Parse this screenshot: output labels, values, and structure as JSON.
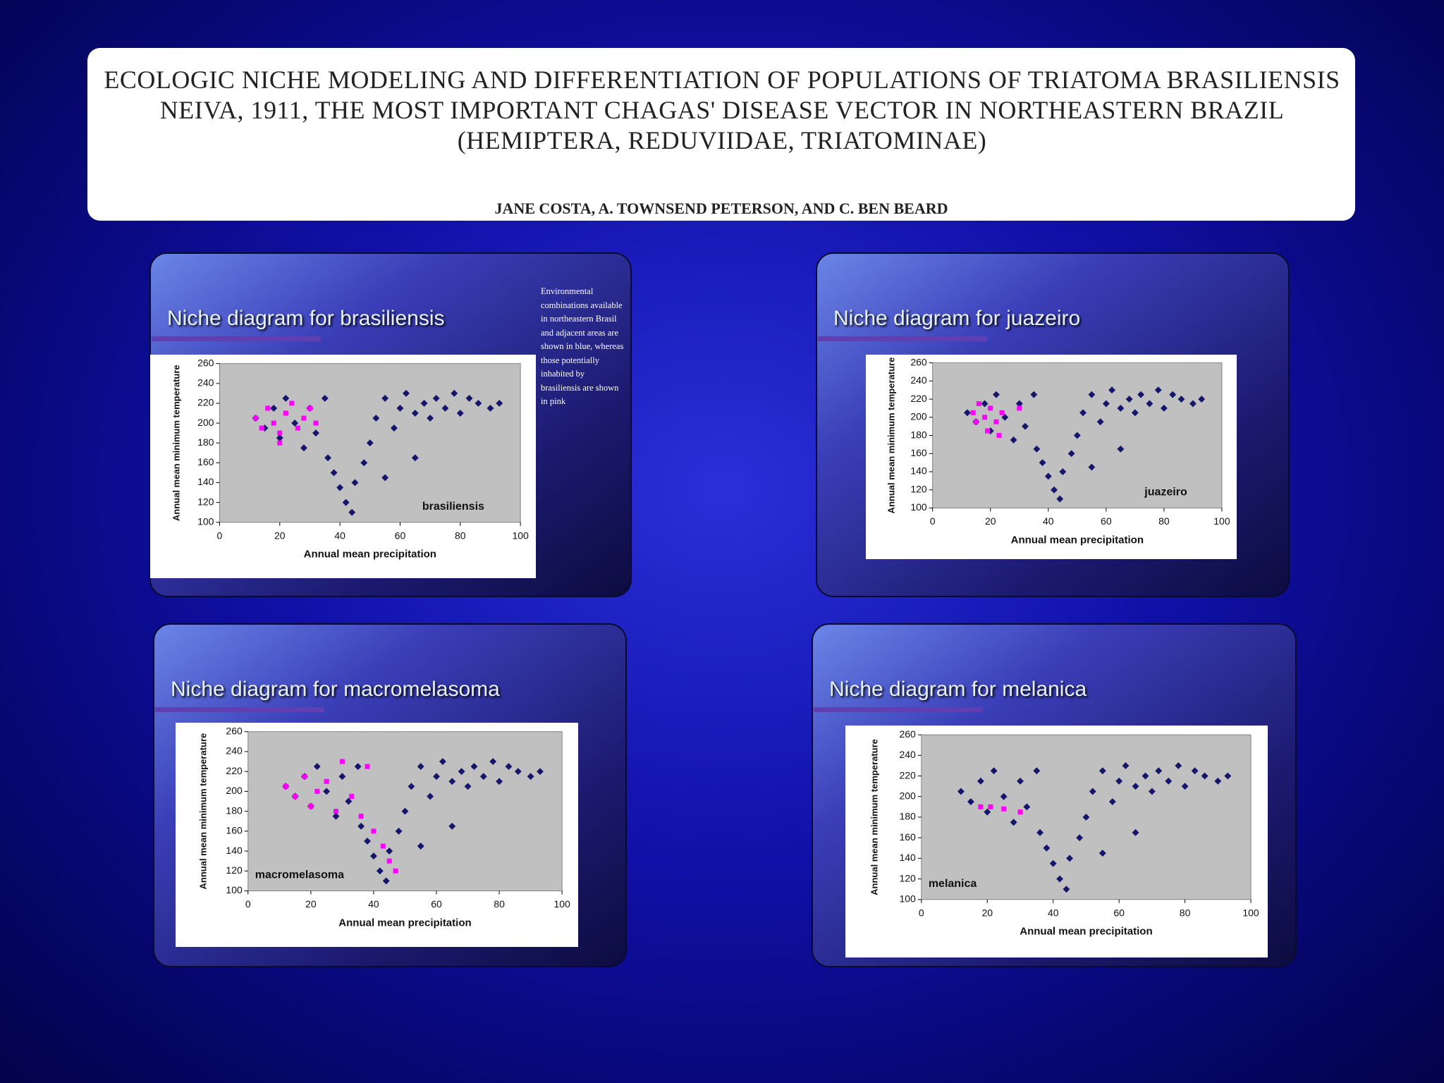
{
  "header": {
    "title": "ECOLOGIC NICHE MODELING AND DIFFERENTIATION OF POPULATIONS OF TRIATOMA BRASILIENSIS NEIVA, 1911, THE MOST IMPORTANT CHAGAS' DISEASE VECTOR IN NORTHEASTERN BRAZIL (HEMIPTERA, REDUVIIDAE, TRIATOMINAE)",
    "authors": "JANE COSTA, A. TOWNSEND PETERSON, AND C. BEN BEARD"
  },
  "side_note": "Environmental combinations available in northeastern Brasil and adjacent areas are shown in blue, whereas those potentially inhabited by brasiliensis are shown in pink",
  "chart_data": [
    {
      "type": "scatter",
      "title": "Niche diagram for brasiliensis",
      "x_label": "Annual mean precipitation",
      "y_label": "Annual mean minimum temperature",
      "annotation": "brasiliensis",
      "label_corner": "bottom-right",
      "xlim": [
        0,
        100
      ],
      "xticks": [
        0,
        20,
        40,
        60,
        80,
        100
      ],
      "ylim": [
        100,
        260
      ],
      "yticks": [
        100,
        120,
        140,
        160,
        180,
        200,
        220,
        240,
        260
      ],
      "series": [
        {
          "color": "#15156b",
          "x": [
            12,
            15,
            18,
            20,
            22,
            25,
            28,
            30,
            32,
            35,
            36,
            38,
            40,
            42,
            44,
            45,
            48,
            50,
            52,
            55,
            58,
            60,
            62,
            65,
            68,
            70,
            72,
            75,
            78,
            80,
            83,
            86,
            90,
            93,
            65,
            55
          ],
          "values": [
            205,
            195,
            215,
            185,
            225,
            200,
            175,
            215,
            190,
            225,
            165,
            150,
            135,
            120,
            110,
            140,
            160,
            180,
            205,
            225,
            195,
            215,
            230,
            210,
            220,
            205,
            225,
            215,
            230,
            210,
            225,
            220,
            215,
            220,
            165,
            145
          ]
        },
        {
          "color": "#ff00ff",
          "x": [
            12,
            14,
            16,
            18,
            20,
            22,
            24,
            26,
            28,
            30,
            32,
            20
          ],
          "values": [
            205,
            195,
            215,
            200,
            190,
            210,
            220,
            195,
            205,
            215,
            200,
            180
          ]
        }
      ]
    },
    {
      "type": "scatter",
      "title": "Niche diagram for juazeiro",
      "x_label": "Annual mean precipitation",
      "y_label": "Annual mean minimum temperature",
      "annotation": "juazeiro",
      "label_corner": "bottom-right",
      "xlim": [
        0,
        100
      ],
      "xticks": [
        0,
        20,
        40,
        60,
        80,
        100
      ],
      "ylim": [
        100,
        260
      ],
      "yticks": [
        100,
        120,
        140,
        160,
        180,
        200,
        220,
        240,
        260
      ],
      "series": [
        {
          "color": "#15156b",
          "x": [
            12,
            15,
            18,
            20,
            22,
            25,
            28,
            30,
            32,
            35,
            36,
            38,
            40,
            42,
            44,
            45,
            48,
            50,
            52,
            55,
            58,
            60,
            62,
            65,
            68,
            70,
            72,
            75,
            78,
            80,
            83,
            86,
            90,
            93,
            65,
            55
          ],
          "values": [
            205,
            195,
            215,
            185,
            225,
            200,
            175,
            215,
            190,
            225,
            165,
            150,
            135,
            120,
            110,
            140,
            160,
            180,
            205,
            225,
            195,
            215,
            230,
            210,
            220,
            205,
            225,
            215,
            230,
            210,
            225,
            220,
            215,
            220,
            165,
            145
          ]
        },
        {
          "color": "#ff00ff",
          "x": [
            14,
            15,
            16,
            18,
            19,
            20,
            22,
            23,
            24,
            30
          ],
          "values": [
            205,
            195,
            215,
            200,
            185,
            210,
            195,
            180,
            205,
            210
          ]
        }
      ]
    },
    {
      "type": "scatter",
      "title": "Niche diagram for macromelasoma",
      "x_label": "Annual mean precipitation",
      "y_label": "Annual mean minimum temperature",
      "annotation": "macromelasoma",
      "label_corner": "bottom-left",
      "xlim": [
        0,
        100
      ],
      "xticks": [
        0,
        20,
        40,
        60,
        80,
        100
      ],
      "ylim": [
        100,
        260
      ],
      "yticks": [
        100,
        120,
        140,
        160,
        180,
        200,
        220,
        240,
        260
      ],
      "series": [
        {
          "color": "#15156b",
          "x": [
            12,
            15,
            18,
            20,
            22,
            25,
            28,
            30,
            32,
            35,
            36,
            38,
            40,
            42,
            44,
            45,
            48,
            50,
            52,
            55,
            58,
            60,
            62,
            65,
            68,
            70,
            72,
            75,
            78,
            80,
            83,
            86,
            90,
            93,
            65,
            55
          ],
          "values": [
            205,
            195,
            215,
            185,
            225,
            200,
            175,
            215,
            190,
            225,
            165,
            150,
            135,
            120,
            110,
            140,
            160,
            180,
            205,
            225,
            195,
            215,
            230,
            210,
            220,
            205,
            225,
            215,
            230,
            210,
            225,
            220,
            215,
            220,
            165,
            145
          ]
        },
        {
          "color": "#ff00ff",
          "x": [
            12,
            15,
            18,
            20,
            22,
            25,
            28,
            30,
            33,
            36,
            40,
            43,
            45,
            47,
            38
          ],
          "values": [
            205,
            195,
            215,
            185,
            200,
            210,
            180,
            230,
            195,
            175,
            160,
            145,
            130,
            120,
            225
          ]
        }
      ]
    },
    {
      "type": "scatter",
      "title": "Niche diagram for melanica",
      "x_label": "Annual mean precipitation",
      "y_label": "Annual mean minimum temperature",
      "annotation": "melanica",
      "label_corner": "bottom-left",
      "xlim": [
        0,
        100
      ],
      "xticks": [
        0,
        20,
        40,
        60,
        80,
        100
      ],
      "ylim": [
        100,
        260
      ],
      "yticks": [
        100,
        120,
        140,
        160,
        180,
        200,
        220,
        240,
        260
      ],
      "series": [
        {
          "color": "#15156b",
          "x": [
            12,
            15,
            18,
            20,
            22,
            25,
            28,
            30,
            32,
            35,
            36,
            38,
            40,
            42,
            44,
            45,
            48,
            50,
            52,
            55,
            58,
            60,
            62,
            65,
            68,
            70,
            72,
            75,
            78,
            80,
            83,
            86,
            90,
            93,
            65,
            55
          ],
          "values": [
            205,
            195,
            215,
            185,
            225,
            200,
            175,
            215,
            190,
            225,
            165,
            150,
            135,
            120,
            110,
            140,
            160,
            180,
            205,
            225,
            195,
            215,
            230,
            210,
            220,
            205,
            225,
            215,
            230,
            210,
            225,
            220,
            215,
            220,
            165,
            145
          ]
        },
        {
          "color": "#ff00ff",
          "x": [
            18,
            21,
            25,
            30
          ],
          "values": [
            190,
            190,
            188,
            185
          ]
        }
      ]
    }
  ]
}
